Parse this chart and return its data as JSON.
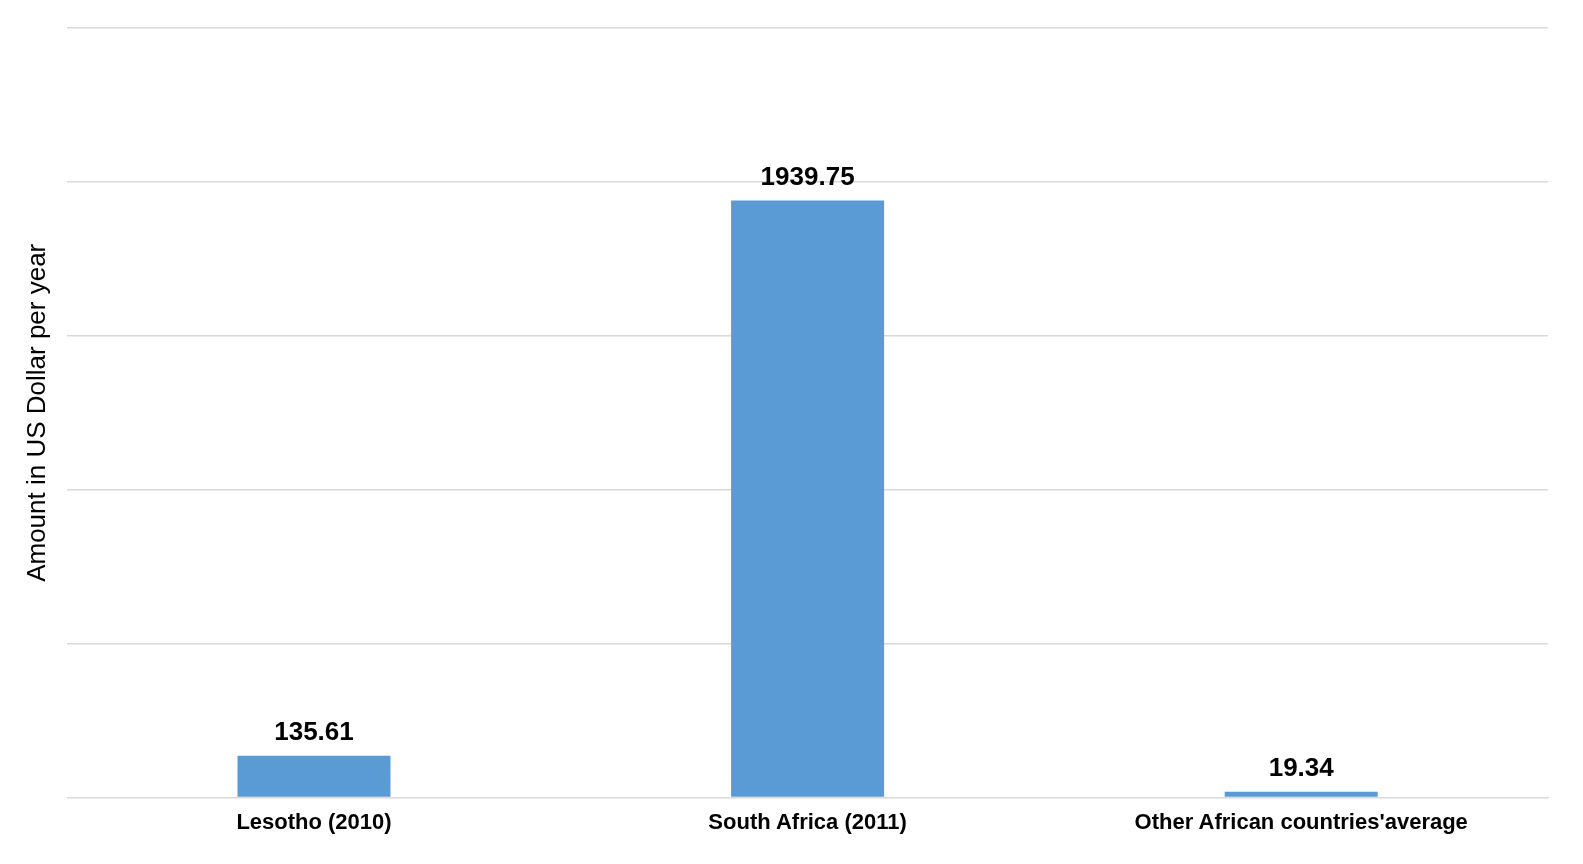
{
  "chart_data": {
    "type": "bar",
    "ylabel": "Amount in US Dollar per year",
    "categories": [
      "Lesotho (2010)",
      "South Africa (2011)",
      "Other African countries'average"
    ],
    "values": [
      135.61,
      1939.75,
      19.34
    ],
    "color": "#5b9bd5",
    "ylim": [
      0,
      2500
    ],
    "yticks": [
      {
        "value": 0,
        "label": null
      },
      {
        "value": 500,
        "label": null
      },
      {
        "value": 1000,
        "label": null
      },
      {
        "value": 1500,
        "label": null
      },
      {
        "value": 2000,
        "label": null
      },
      {
        "value": 2500,
        "label": null
      }
    ],
    "tick_labels": "x",
    "grid": "y",
    "data_labels": true
  }
}
